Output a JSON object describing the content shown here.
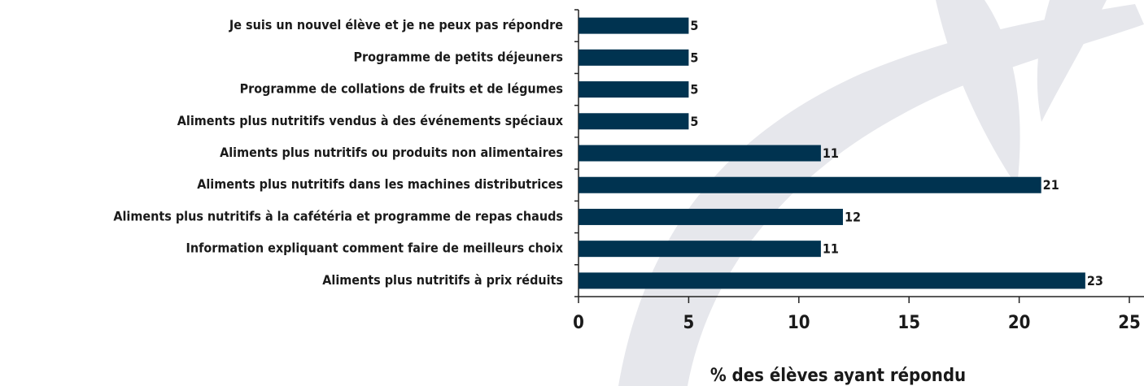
{
  "chart_data": {
    "type": "hbar",
    "categories": [
      "Je suis un nouvel élève et je ne peux pas répondre",
      "Programme de petits déjeuners",
      "Programme de collations de fruits et de légumes",
      "Aliments plus nutritifs vendus à des événements spéciaux",
      "Aliments plus nutritifs ou produits non alimentaires",
      "Aliments plus nutritifs dans les machines distributrices",
      "Aliments plus nutritifs à la cafétéria et programme de repas chauds",
      "Information expliquant comment faire de meilleurs choix",
      "Aliments plus nutritifs à prix réduits"
    ],
    "values": [
      5,
      5,
      5,
      5,
      11,
      21,
      12,
      11,
      23
    ],
    "color": "#003350",
    "xlim": [
      0,
      25
    ],
    "xticks": [
      0,
      5,
      10,
      15,
      20,
      25
    ],
    "xlabel": "% des élèves ayant répondu"
  }
}
